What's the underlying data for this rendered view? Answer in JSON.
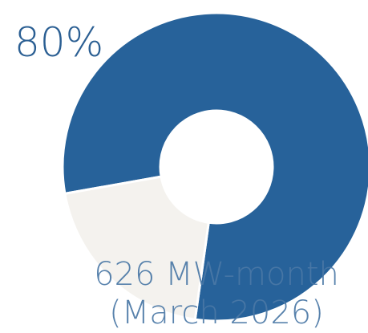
{
  "chart_data": {
    "type": "pie",
    "donut": true,
    "categories": [
      "",
      ""
    ],
    "values": [
      80,
      20
    ],
    "colors": [
      "#27629a",
      "#f4f2ee"
    ],
    "data_labels": {
      "percent": "80%",
      "caption_line_1": "626 MW-month",
      "caption_line_2": "(March 2026)"
    },
    "title": "",
    "legend": "none"
  }
}
